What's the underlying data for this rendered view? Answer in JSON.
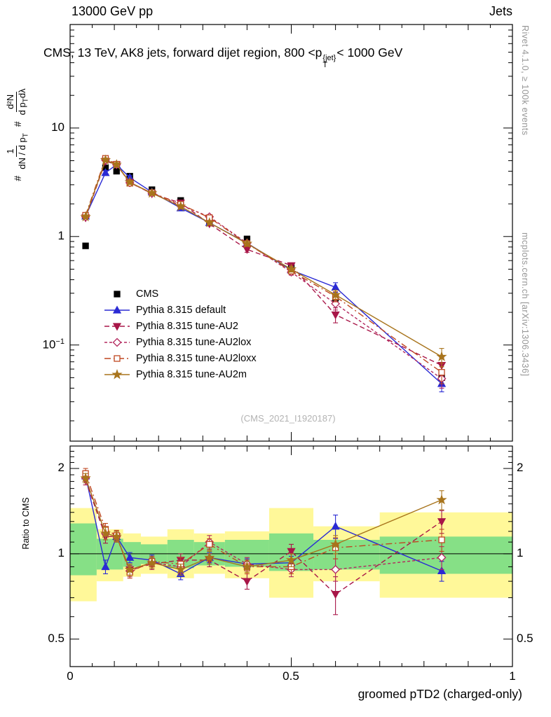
{
  "header": {
    "left": "13000 GeV pp",
    "right": "Jets"
  },
  "main_title": {
    "prefix": "CMS, 13 TeV, AK8 jets, forward dijet region, 800 <p",
    "sup": "{jet}",
    "sub": "T",
    "suffix": "< 1000 GeV"
  },
  "titles": {
    "watermark": "(CMS_2021_I1920187)",
    "x_axis": "groomed pTD2 (charged-only)",
    "ratio_label": "Ratio to CMS",
    "right_top": "Rivet 4.1.0, ≥ 100k events",
    "right_bottom": "mcplots.cern.ch [arXiv:1306.3436]"
  },
  "y_label": {
    "hash1": "#",
    "num1": "1",
    "den1": "dN / d p",
    "den1_sub": "T",
    "hash2": "#",
    "num2": "d²N",
    "den2a": "d p",
    "den2a_sub": "T",
    "den2b": "dλ"
  },
  "axes": {
    "main_y": [
      "10",
      "1",
      "10"
    ],
    "main_y_exp": "−1",
    "ratio_y": [
      "2",
      "1",
      "0.5"
    ],
    "x": [
      "0",
      "0.5",
      "1"
    ]
  },
  "colors": {
    "band_yellow": "#fff899",
    "band_green": "#86e086",
    "frame": "#000000",
    "watermark_gray": "#b3b3b3"
  },
  "chart_data": [
    {
      "type": "line",
      "title": "CMS, 13 TeV, AK8 jets, forward dijet region, 800 <pT^{jet}< 1000 GeV",
      "xlabel": "groomed pTD2 (charged-only)",
      "ylabel": "# 1/(dN/dpT) # d²N/(dpT dλ)",
      "x_scale": "linear",
      "y_scale": "log",
      "xlim": [
        0,
        1
      ],
      "ylim": [
        0.013,
        90
      ],
      "legend_position": "left-middle",
      "x": [
        0.035,
        0.08,
        0.105,
        0.135,
        0.185,
        0.25,
        0.315,
        0.4,
        0.5,
        0.6,
        0.84
      ],
      "series": [
        {
          "name": "CMS",
          "color": "#000000",
          "marker": "square",
          "open": false,
          "line": "none",
          "values": [
            0.82,
            4.3,
            4.0,
            3.6,
            2.7,
            2.15,
            1.38,
            0.95,
            0.53,
            0.27,
            0.05
          ],
          "errors": [
            0.04,
            0.15,
            0.15,
            0.12,
            0.09,
            0.07,
            0.05,
            0.035,
            0.025,
            0.02,
            0.006
          ]
        },
        {
          "name": "Pythia 8.315 default",
          "color": "#2a2ad4",
          "marker": "triangle-up",
          "open": false,
          "line": "solid",
          "values": [
            1.54,
            3.87,
            4.6,
            3.49,
            2.57,
            1.83,
            1.34,
            0.87,
            0.49,
            0.34,
            0.044
          ],
          "errors": [
            0.06,
            0.2,
            0.2,
            0.15,
            0.1,
            0.08,
            0.06,
            0.045,
            0.03,
            0.035,
            0.007
          ]
        },
        {
          "name": "Pythia 8.315 tune-AU2",
          "color": "#a81648",
          "marker": "triangle-down",
          "open": false,
          "line": "dash",
          "values": [
            1.49,
            4.95,
            4.6,
            3.17,
            2.48,
            2.04,
            1.31,
            0.76,
            0.54,
            0.19,
            0.065
          ],
          "errors": [
            0.06,
            0.22,
            0.2,
            0.15,
            0.1,
            0.08,
            0.06,
            0.045,
            0.03,
            0.03,
            0.012
          ]
        },
        {
          "name": "Pythia 8.315 tune-AU2lox",
          "color": "#b3285e",
          "marker": "diamond",
          "open": true,
          "line": "dash2",
          "values": [
            1.52,
            5.07,
            4.6,
            3.13,
            2.51,
            1.94,
            1.52,
            0.87,
            0.47,
            0.24,
            0.049
          ],
          "errors": [
            0.06,
            0.22,
            0.2,
            0.15,
            0.1,
            0.08,
            0.07,
            0.045,
            0.03,
            0.03,
            0.009
          ]
        },
        {
          "name": "Pythia 8.315 tune-AU2loxx",
          "color": "#bf4721",
          "marker": "square",
          "open": true,
          "line": "dashdot",
          "values": [
            1.57,
            5.25,
            4.64,
            3.1,
            2.54,
            1.98,
            1.49,
            0.86,
            0.48,
            0.28,
            0.056
          ],
          "errors": [
            0.07,
            0.23,
            0.2,
            0.15,
            0.1,
            0.08,
            0.07,
            0.045,
            0.03,
            0.03,
            0.012
          ]
        },
        {
          "name": "Pythia 8.315 tune-AU2m",
          "color": "#a8741c",
          "marker": "star",
          "open": false,
          "line": "solid",
          "values": [
            1.52,
            5.07,
            4.6,
            3.17,
            2.51,
            1.89,
            1.34,
            0.86,
            0.5,
            0.29,
            0.078
          ],
          "errors": [
            0.06,
            0.22,
            0.2,
            0.15,
            0.1,
            0.08,
            0.06,
            0.045,
            0.03,
            0.03,
            0.015
          ]
        }
      ]
    },
    {
      "type": "line",
      "title": "Ratio to CMS",
      "ylabel": "Ratio to CMS",
      "x_scale": "linear",
      "y_scale": "log",
      "xlim": [
        0,
        1
      ],
      "ylim": [
        0.4,
        2.4
      ],
      "reference_line": 1.0,
      "x": [
        0.035,
        0.08,
        0.105,
        0.135,
        0.185,
        0.25,
        0.315,
        0.4,
        0.5,
        0.6,
        0.84
      ],
      "series": [
        {
          "name": "Pythia 8.315 default",
          "color": "#2a2ad4",
          "marker": "triangle-up",
          "open": false,
          "line": "solid",
          "values": [
            1.88,
            0.9,
            1.15,
            0.97,
            0.95,
            0.85,
            0.97,
            0.92,
            0.93,
            1.25,
            0.87
          ],
          "errors": [
            0.07,
            0.05,
            0.05,
            0.04,
            0.04,
            0.04,
            0.04,
            0.04,
            0.05,
            0.12,
            0.07
          ]
        },
        {
          "name": "Pythia 8.315 tune-AU2",
          "color": "#a81648",
          "marker": "triangle-down",
          "open": false,
          "line": "dash",
          "values": [
            1.82,
            1.15,
            1.15,
            0.88,
            0.92,
            0.95,
            0.95,
            0.8,
            1.02,
            0.72,
            1.3
          ],
          "errors": [
            0.07,
            0.06,
            0.05,
            0.04,
            0.04,
            0.05,
            0.05,
            0.05,
            0.06,
            0.11,
            0.12
          ]
        },
        {
          "name": "Pythia 8.315 tune-AU2lox",
          "color": "#b3285e",
          "marker": "diamond",
          "open": true,
          "line": "dash2",
          "values": [
            1.85,
            1.18,
            1.15,
            0.87,
            0.93,
            0.9,
            1.1,
            0.92,
            0.88,
            0.88,
            0.97
          ],
          "errors": [
            0.07,
            0.06,
            0.05,
            0.04,
            0.04,
            0.05,
            0.06,
            0.05,
            0.05,
            0.08,
            0.09
          ]
        },
        {
          "name": "Pythia 8.315 tune-AU2loxx",
          "color": "#bf4721",
          "marker": "square",
          "open": true,
          "line": "dashdot",
          "values": [
            1.92,
            1.22,
            1.16,
            0.86,
            0.94,
            0.92,
            1.08,
            0.9,
            0.9,
            1.05,
            1.12
          ],
          "errors": [
            0.08,
            0.06,
            0.05,
            0.04,
            0.04,
            0.05,
            0.05,
            0.05,
            0.05,
            0.09,
            0.1
          ]
        },
        {
          "name": "Pythia 8.315 tune-AU2m",
          "color": "#a8741c",
          "marker": "star",
          "open": false,
          "line": "solid",
          "values": [
            1.85,
            1.18,
            1.15,
            0.88,
            0.93,
            0.88,
            0.97,
            0.9,
            0.95,
            1.08,
            1.55
          ],
          "errors": [
            0.07,
            0.06,
            0.05,
            0.04,
            0.04,
            0.04,
            0.05,
            0.04,
            0.05,
            0.08,
            0.12
          ]
        }
      ],
      "bands": [
        {
          "x0": 0.0,
          "x1": 0.06,
          "yellow": [
            0.68,
            1.45
          ],
          "green": [
            0.84,
            1.28
          ]
        },
        {
          "x0": 0.06,
          "x1": 0.12,
          "yellow": [
            0.8,
            1.22
          ],
          "green": [
            0.88,
            1.13
          ]
        },
        {
          "x0": 0.12,
          "x1": 0.16,
          "yellow": [
            0.83,
            1.18
          ],
          "green": [
            0.9,
            1.1
          ]
        },
        {
          "x0": 0.16,
          "x1": 0.22,
          "yellow": [
            0.85,
            1.15
          ],
          "green": [
            0.92,
            1.08
          ]
        },
        {
          "x0": 0.22,
          "x1": 0.28,
          "yellow": [
            0.82,
            1.22
          ],
          "green": [
            0.89,
            1.12
          ]
        },
        {
          "x0": 0.28,
          "x1": 0.35,
          "yellow": [
            0.85,
            1.18
          ],
          "green": [
            0.91,
            1.1
          ]
        },
        {
          "x0": 0.35,
          "x1": 0.45,
          "yellow": [
            0.82,
            1.2
          ],
          "green": [
            0.9,
            1.12
          ]
        },
        {
          "x0": 0.45,
          "x1": 0.55,
          "yellow": [
            0.7,
            1.45
          ],
          "green": [
            0.87,
            1.18
          ]
        },
        {
          "x0": 0.55,
          "x1": 0.7,
          "yellow": [
            0.8,
            1.25
          ],
          "green": [
            0.88,
            1.12
          ]
        },
        {
          "x0": 0.7,
          "x1": 1.0,
          "yellow": [
            0.7,
            1.4
          ],
          "green": [
            0.85,
            1.15
          ]
        }
      ]
    }
  ]
}
